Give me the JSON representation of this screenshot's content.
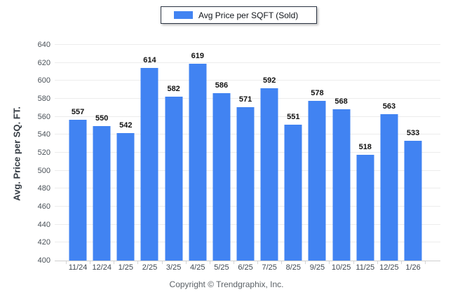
{
  "chart_data": {
    "type": "bar",
    "legend": "Avg Price per SQFT (Sold)",
    "ylabel": "Avg. Price per SQ. FT.",
    "categories": [
      "11/24",
      "12/24",
      "1/25",
      "2/25",
      "3/25",
      "4/25",
      "5/25",
      "6/25",
      "7/25",
      "8/25",
      "9/25",
      "10/25",
      "11/25",
      "12/25",
      "1/26"
    ],
    "values": [
      557,
      550,
      542,
      614,
      582,
      619,
      586,
      571,
      592,
      551,
      578,
      568,
      518,
      563,
      533
    ],
    "ylim": [
      400,
      640
    ],
    "y_ticks": [
      400,
      420,
      440,
      460,
      480,
      500,
      520,
      540,
      560,
      580,
      600,
      620,
      640
    ],
    "bar_color": "#4183f2",
    "grid": true,
    "legend_position": "top-center"
  },
  "footer": {
    "copyright": "Copyright © Trendgraphix, Inc."
  }
}
